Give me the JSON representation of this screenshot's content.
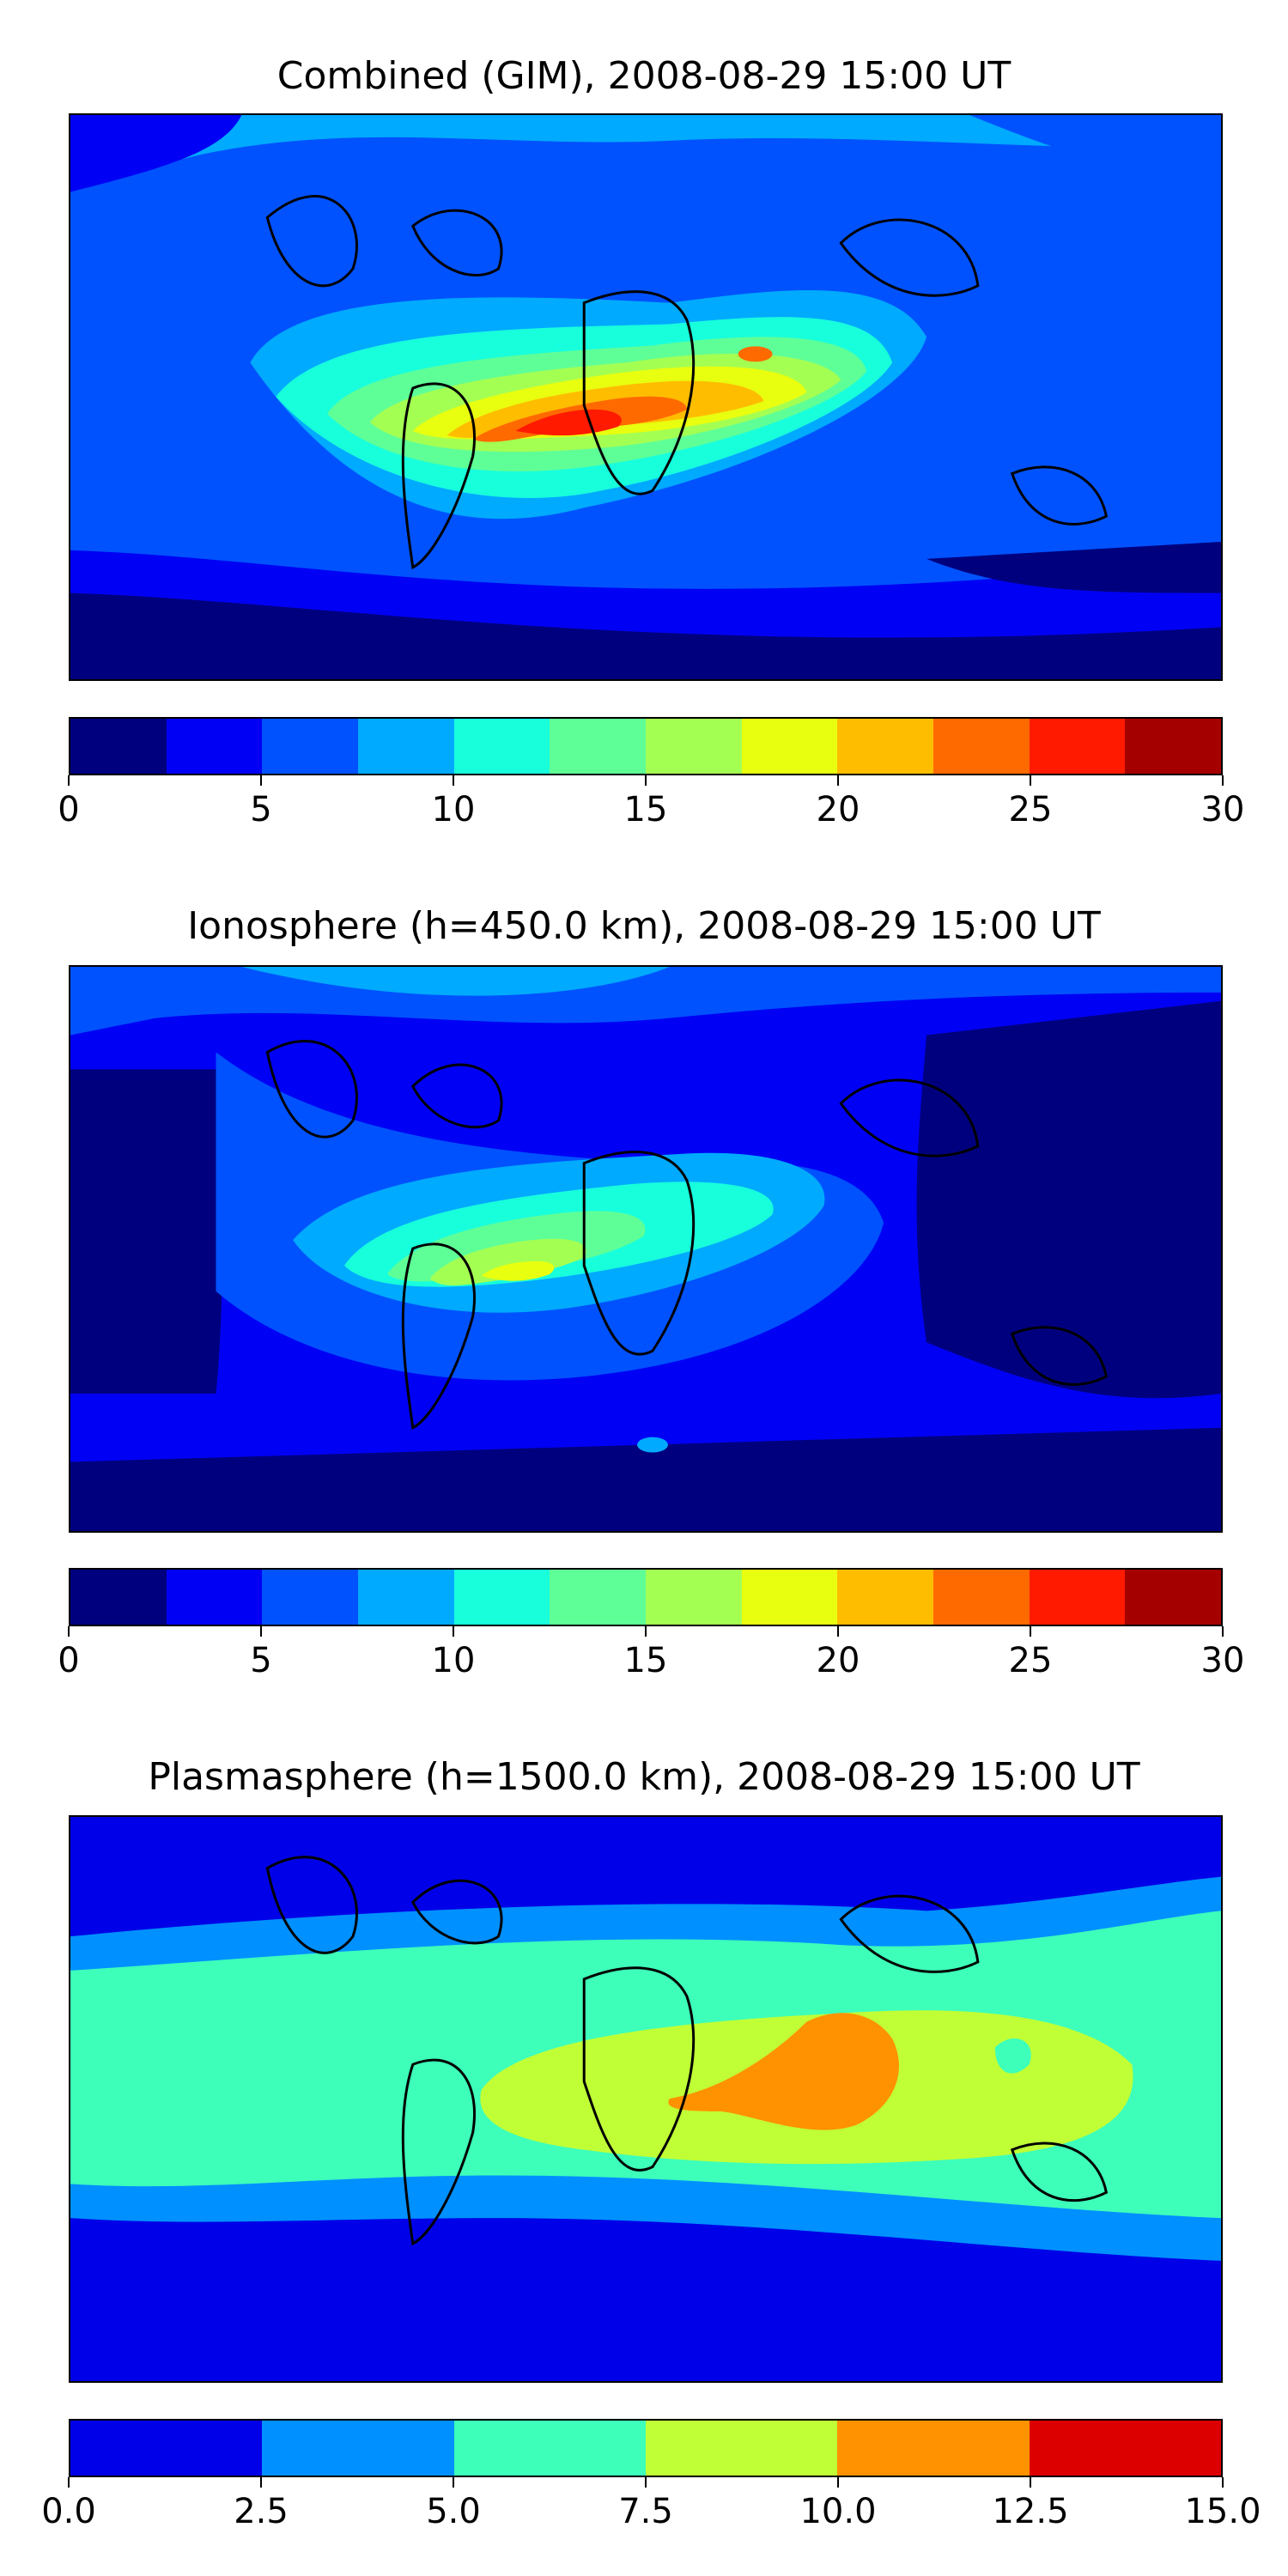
{
  "panels": [
    {
      "title": "Combined (GIM), 2008-08-29 15:00 UT",
      "colorbar": {
        "colors": [
          "#00007f",
          "#0000f4",
          "#0052ff",
          "#00aaff",
          "#18ffdc",
          "#5fff97",
          "#a4ff53",
          "#e8ff0f",
          "#ffbd00",
          "#ff6a00",
          "#ff1a00",
          "#a50000"
        ],
        "ticks": [
          "0",
          "5",
          "10",
          "15",
          "20",
          "25",
          "30"
        ],
        "range": [
          0,
          30
        ]
      }
    },
    {
      "title": "Ionosphere  (h=450.0 km), 2008-08-29 15:00 UT",
      "colorbar": {
        "colors": [
          "#00007f",
          "#0000f4",
          "#0052ff",
          "#00aaff",
          "#18ffdc",
          "#5fff97",
          "#a4ff53",
          "#e8ff0f",
          "#ffbd00",
          "#ff6a00",
          "#ff1a00",
          "#a50000"
        ],
        "ticks": [
          "0",
          "5",
          "10",
          "15",
          "20",
          "25",
          "30"
        ],
        "range": [
          0,
          30
        ]
      }
    },
    {
      "title": "Plasmasphere (h=1500.0 km), 2008-08-29 15:00 UT",
      "colorbar": {
        "colors": [
          "#0000e8",
          "#0090ff",
          "#3dffba",
          "#c0ff36",
          "#ff9200",
          "#dd0000"
        ],
        "ticks": [
          "0.0",
          "2.5",
          "5.0",
          "7.5",
          "10.0",
          "12.5",
          "15.0"
        ],
        "range": [
          0,
          15
        ]
      }
    }
  ]
}
